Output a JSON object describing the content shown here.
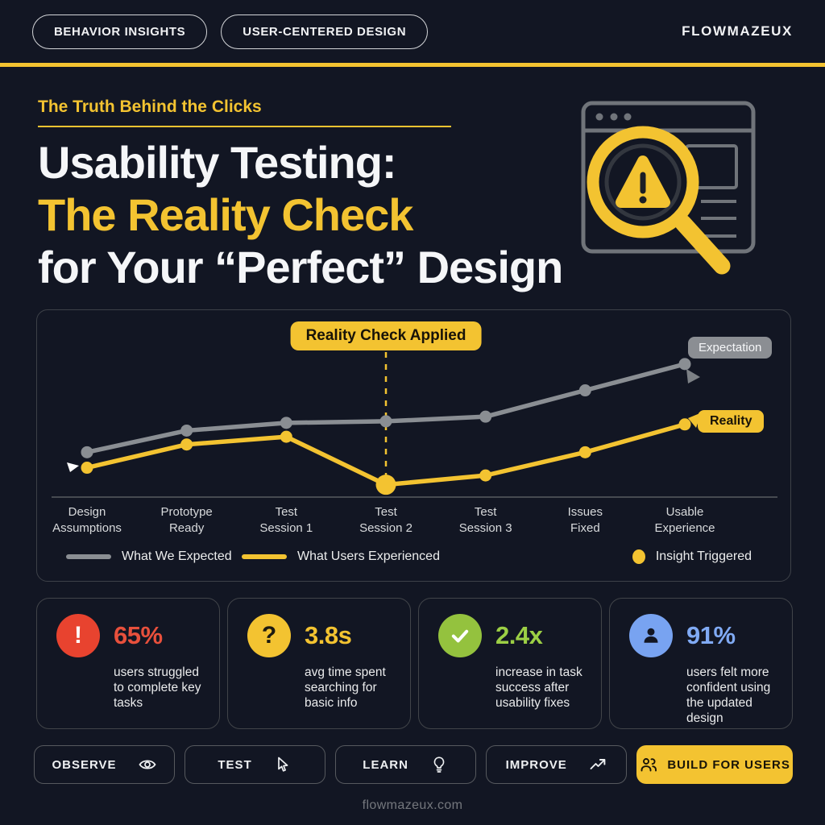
{
  "topbar": {
    "pills": [
      {
        "label": "BEHAVIOR INSIGHTS"
      },
      {
        "label": "USER-CENTERED DESIGN"
      }
    ],
    "brand": "FLOWMAZEUX"
  },
  "hero": {
    "eyebrow": "The Truth Behind the Clicks",
    "title_line1": "Usability Testing:",
    "title_line2": "The Reality Check",
    "title_line3": "for Your “Perfect” Design",
    "illustration": "browser-magnifier-warning-icon"
  },
  "chart_data": {
    "type": "line",
    "title": "",
    "categories": [
      "Design\nAssumptions",
      "Prototype\nReady",
      "Test\nSession 1",
      "Test\nSession 2",
      "Test\nSession 3",
      "Issues\nFixed",
      "Usable\nExperience"
    ],
    "series": [
      {
        "name": "What We Expected",
        "color": "#8a8e93",
        "values": [
          29,
          43,
          48,
          49,
          52,
          69,
          86
        ]
      },
      {
        "name": "What Users Experienced",
        "color": "#f3c331",
        "values": [
          19,
          34,
          39,
          8,
          14,
          29,
          47
        ]
      }
    ],
    "ylim": [
      0,
      100
    ],
    "grid": false,
    "legend_position": "bottom",
    "annotation": {
      "label": "Reality Check Applied",
      "category_index": 3
    },
    "highlight_point": {
      "series": 1,
      "index": 3,
      "note": "Insight Triggered"
    },
    "end_labels": [
      {
        "text": "Expectation",
        "series": 0
      },
      {
        "text": "Reality",
        "series": 1
      }
    ],
    "legend": [
      {
        "label": "What We Expected",
        "swatch": "line",
        "color": "#8a8e93"
      },
      {
        "label": "What Users Experienced",
        "swatch": "line",
        "color": "#f3c331"
      },
      {
        "label": "Insight Triggered",
        "swatch": "dot",
        "color": "#f3c331"
      }
    ]
  },
  "stats": [
    {
      "icon": "exclamation-icon",
      "glyph": "!",
      "icon_bg": "#e8432f",
      "glyph_color": "#ffffff",
      "value": "65%",
      "value_color": "#e8503c",
      "desc": "users struggled\nto complete key\ntasks"
    },
    {
      "icon": "question-icon",
      "glyph": "?",
      "icon_bg": "#f3c331",
      "glyph_color": "#1c1a10",
      "value": "3.8s",
      "value_color": "#f3c331",
      "desc": "avg time spent\nsearching for\nbasic info"
    },
    {
      "icon": "check-icon",
      "glyph": "",
      "icon_bg": "#94c23e",
      "glyph_color": "#ffffff",
      "value": "2.4x",
      "value_color": "#9ccf45",
      "desc": "increase in task\nsuccess after\nusability fixes"
    },
    {
      "icon": "user-icon",
      "glyph": "",
      "icon_bg": "#78a3f1",
      "glyph_color": "#121623",
      "value": "91%",
      "value_color": "#80aaf4",
      "desc": "users felt more\nconfident using\nthe updated design"
    }
  ],
  "actions": [
    {
      "label": "OBSERVE",
      "icon": "eye-icon"
    },
    {
      "label": "TEST",
      "icon": "cursor-icon"
    },
    {
      "label": "LEARN",
      "icon": "bulb-icon"
    },
    {
      "label": "IMPROVE",
      "icon": "trend-up-icon"
    },
    {
      "label": "BUILD FOR USERS",
      "icon": "users-icon",
      "primary": true
    }
  ],
  "footer": {
    "url": "flowmazeux.com"
  },
  "colors": {
    "background": "#121623",
    "accent": "#f3c331",
    "expectation_gray": "#8a8e93",
    "panel_border": "#3d4148",
    "alert_red": "#e8432f",
    "success_green": "#94c23e",
    "info_blue": "#78a3f1"
  }
}
